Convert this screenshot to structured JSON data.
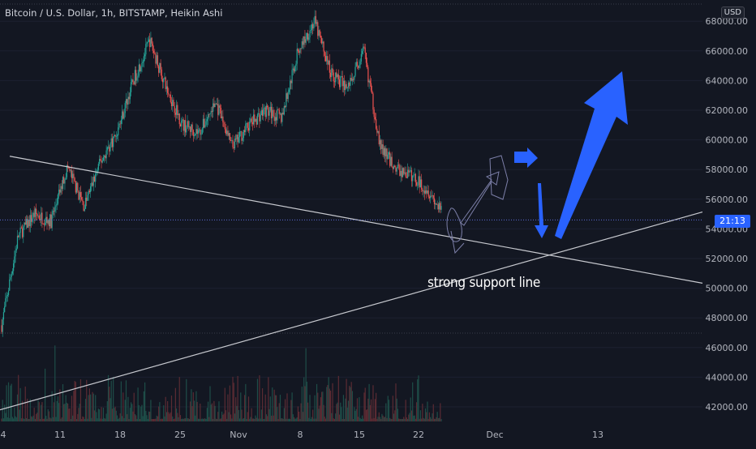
{
  "chart": {
    "title": "Bitcoin / U.S. Dollar, 1h, BITSTAMP, Heikin Ashi",
    "currency": "USD",
    "price_tag": "21:13",
    "annotation": "strong support line"
  },
  "colors": {
    "background": "#131722",
    "bullish": "#26a69a",
    "bearish": "#ef5350",
    "trendline": "#c7c9cf",
    "arrow": "#2962ff",
    "axis_text": "#b2b5be"
  },
  "chart_data": {
    "type": "candlestick",
    "style": "Heikin Ashi",
    "ylim": [
      40500,
      69000
    ],
    "y_ticks": [
      "42000.00",
      "44000.00",
      "46000.00",
      "48000.00",
      "50000.00",
      "52000.00",
      "54000.00",
      "56000.00",
      "58000.00",
      "60000.00",
      "62000.00",
      "64000.00",
      "66000.00",
      "68000.00"
    ],
    "x_ticks": [
      "4",
      "11",
      "18",
      "25",
      "Nov",
      "8",
      "15",
      "22",
      "Dec",
      "13"
    ],
    "close_path_days": [
      0,
      2,
      4,
      6,
      8,
      10,
      12,
      14,
      16,
      18,
      20,
      22,
      24,
      26,
      28,
      30,
      32,
      34,
      36,
      38,
      40,
      42,
      44,
      46,
      48,
      50,
      52,
      53.5
    ],
    "close_path_prices": [
      47500,
      53500,
      55000,
      54500,
      58200,
      55500,
      58500,
      60500,
      64000,
      66700,
      63500,
      61000,
      60500,
      62500,
      59500,
      61000,
      62000,
      61500,
      66000,
      68000,
      64500,
      63500,
      66000,
      59500,
      58000,
      57500,
      56500,
      55000
    ],
    "last_price": 54600,
    "support_line_prices": [
      41800,
      55200
    ],
    "resistance_line_prices": [
      58900,
      50300
    ],
    "lines_intersection_price": 52300
  }
}
